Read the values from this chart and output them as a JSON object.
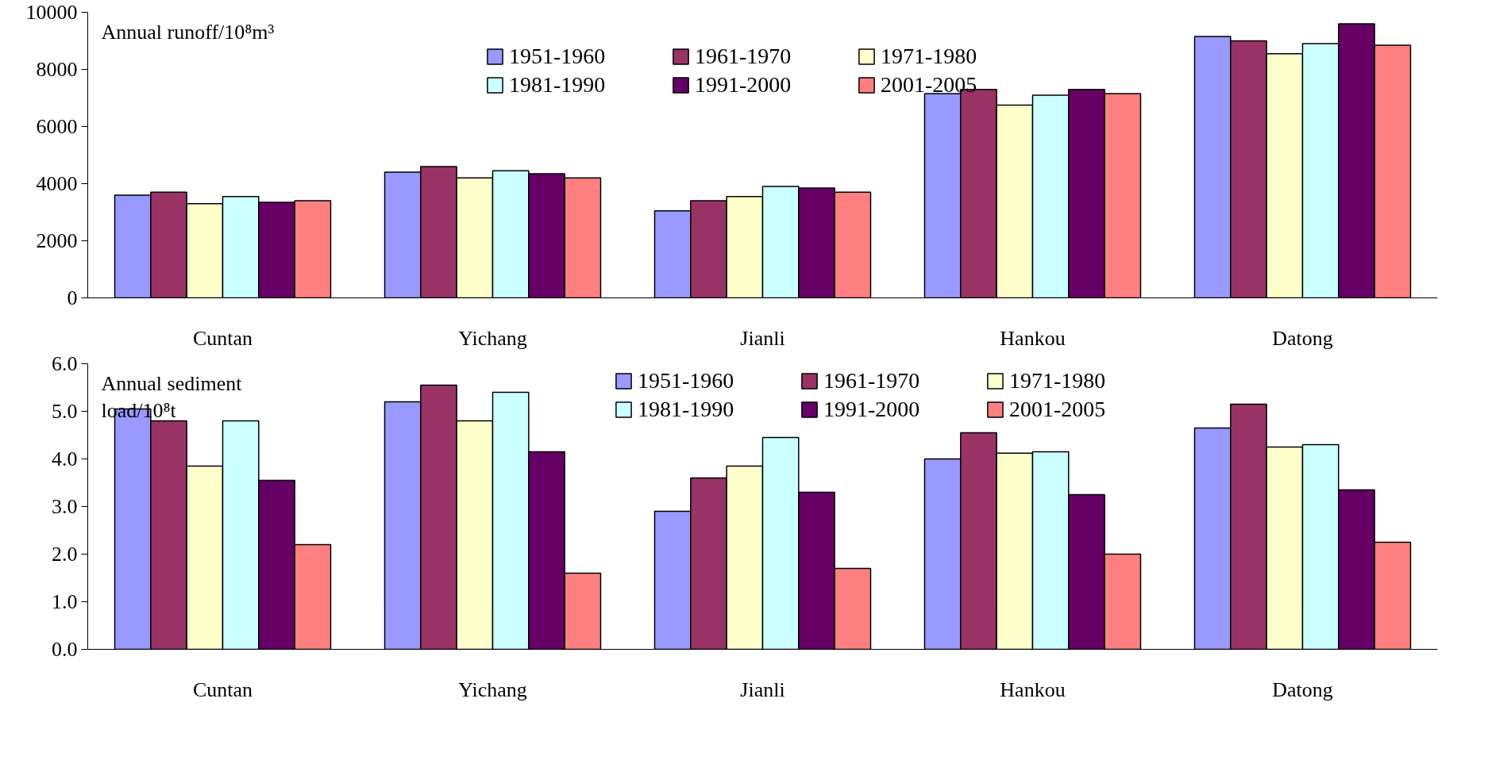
{
  "chart_data": [
    {
      "type": "bar",
      "ylabel": "Annual runoff/10⁸m³",
      "categories": [
        "Cuntan",
        "Yichang",
        "Jianli",
        "Hankou",
        "Datong"
      ],
      "series": [
        {
          "name": "1951-1960",
          "color": "#9999ff",
          "values": [
            3600,
            4400,
            3050,
            7150,
            9150
          ]
        },
        {
          "name": "1961-1970",
          "color": "#993366",
          "values": [
            3700,
            4600,
            3400,
            7300,
            9000
          ]
        },
        {
          "name": "1971-1980",
          "color": "#ffffcc",
          "values": [
            3300,
            4200,
            3550,
            6750,
            8550
          ]
        },
        {
          "name": "1981-1990",
          "color": "#ccffff",
          "values": [
            3550,
            4450,
            3900,
            7100,
            8900
          ]
        },
        {
          "name": "1991-2000",
          "color": "#660066",
          "values": [
            3350,
            4350,
            3850,
            7300,
            9600
          ]
        },
        {
          "name": "2001-2005",
          "color": "#ff8080",
          "values": [
            3400,
            4200,
            3700,
            7150,
            8850
          ]
        }
      ],
      "ylim": [
        0,
        10000
      ],
      "yticks": [
        0,
        2000,
        4000,
        6000,
        8000,
        10000
      ],
      "legend": "top",
      "grid": false
    },
    {
      "type": "bar",
      "ylabel": "Annual sediment\nload/10⁸t",
      "categories": [
        "Cuntan",
        "Yichang",
        "Jianli",
        "Hankou",
        "Datong"
      ],
      "series": [
        {
          "name": "1951-1960",
          "color": "#9999ff",
          "values": [
            5.05,
            5.2,
            2.9,
            4.0,
            4.65
          ]
        },
        {
          "name": "1961-1970",
          "color": "#993366",
          "values": [
            4.8,
            5.55,
            3.6,
            4.55,
            5.15
          ]
        },
        {
          "name": "1971-1980",
          "color": "#ffffcc",
          "values": [
            3.85,
            4.8,
            3.85,
            4.12,
            4.25
          ]
        },
        {
          "name": "1981-1990",
          "color": "#ccffff",
          "values": [
            4.8,
            5.4,
            4.45,
            4.15,
            4.3
          ]
        },
        {
          "name": "1991-2000",
          "color": "#660066",
          "values": [
            3.55,
            4.15,
            3.3,
            3.25,
            3.35
          ]
        },
        {
          "name": "2001-2005",
          "color": "#ff8080",
          "values": [
            2.2,
            1.6,
            1.7,
            2.0,
            2.25
          ]
        }
      ],
      "ylim": [
        0,
        6
      ],
      "yticks": [
        {
          "value": 0,
          "label": "0.0"
        },
        {
          "value": 1,
          "label": "1.0"
        },
        {
          "value": 2,
          "label": "2.0"
        },
        {
          "value": 3,
          "label": "3.0"
        },
        {
          "value": 4,
          "label": "4.0"
        },
        {
          "value": 5,
          "label": "5.0"
        },
        {
          "value": 6,
          "label": "6.0"
        }
      ],
      "legend": "top",
      "grid": false
    }
  ]
}
